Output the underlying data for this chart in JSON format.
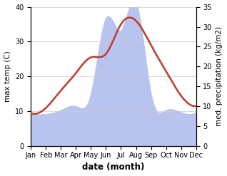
{
  "months": [
    "Jan",
    "Feb",
    "Mar",
    "Apr",
    "May",
    "Jun",
    "Jul",
    "Aug",
    "Sep",
    "Oct",
    "Nov",
    "Dec"
  ],
  "temp": [
    9.5,
    11.0,
    16.0,
    21.0,
    25.5,
    26.5,
    35.0,
    36.0,
    29.0,
    21.5,
    14.5,
    11.5
  ],
  "precip": [
    8.0,
    8.0,
    9.0,
    10.0,
    13.0,
    32.0,
    29.0,
    36.0,
    13.0,
    9.0,
    8.5,
    8.5
  ],
  "temp_color": "#c0392b",
  "precip_color": "#b8c4ee",
  "background": "#ffffff",
  "ylabel_left": "max temp (C)",
  "ylabel_right": "med. precipitation (kg/m2)",
  "xlabel": "date (month)",
  "ylim_left": [
    0,
    40
  ],
  "ylim_right": [
    0,
    35
  ],
  "yticks_left": [
    0,
    10,
    20,
    30,
    40
  ],
  "yticks_right": [
    0,
    5,
    10,
    15,
    20,
    25,
    30,
    35
  ],
  "grid_color": "#cccccc",
  "temp_linewidth": 1.8,
  "xlabel_fontsize": 8.5,
  "ylabel_fontsize": 7.5,
  "tick_fontsize": 7.0
}
